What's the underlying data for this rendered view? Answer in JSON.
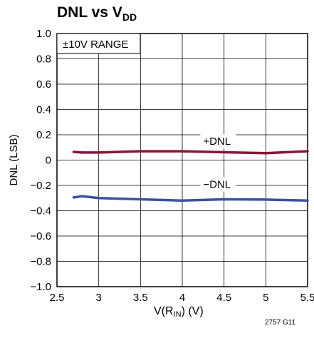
{
  "chart_data": {
    "type": "line",
    "title": {
      "main": "DNL vs V",
      "sub": "DD"
    },
    "xlabel": {
      "pre": "V(R",
      "sub": "IN",
      "post": ") (V)"
    },
    "ylabel": "DNL (LSB)",
    "xlim": [
      2.5,
      5.5
    ],
    "ylim": [
      -1.0,
      1.0
    ],
    "x_ticks": [
      2.5,
      3,
      3.5,
      4,
      4.5,
      5,
      5.5
    ],
    "x_tick_labels": [
      "2.5",
      "3",
      "3.5",
      "4",
      "4.5",
      "5",
      "5.5"
    ],
    "y_ticks": [
      1.0,
      0.8,
      0.6,
      0.4,
      0.2,
      0,
      -0.2,
      -0.4,
      -0.6,
      -0.8,
      -1.0
    ],
    "y_tick_labels": [
      "1.0",
      "0.8",
      "0.6",
      "0.4",
      "0.2",
      "0",
      "−0.2",
      "−0.4",
      "−0.6",
      "−0.8",
      "−1.0"
    ],
    "grid": true,
    "annotation": "±10V RANGE",
    "series": [
      {
        "name": "+DNL",
        "color": "#8b1538",
        "label_at": [
          4.25,
          0.12
        ],
        "x": [
          2.7,
          2.8,
          3.0,
          3.5,
          4.0,
          4.5,
          5.0,
          5.5
        ],
        "values": [
          0.065,
          0.06,
          0.06,
          0.07,
          0.07,
          0.062,
          0.055,
          0.07
        ]
      },
      {
        "name": "−DNL",
        "color": "#3a52a0",
        "label_at": [
          4.25,
          -0.22
        ],
        "x": [
          2.7,
          2.8,
          3.0,
          3.5,
          4.0,
          4.5,
          5.0,
          5.5
        ],
        "values": [
          -0.295,
          -0.285,
          -0.3,
          -0.31,
          -0.32,
          -0.31,
          -0.312,
          -0.32
        ]
      }
    ]
  },
  "figure_id": "2757 G11"
}
